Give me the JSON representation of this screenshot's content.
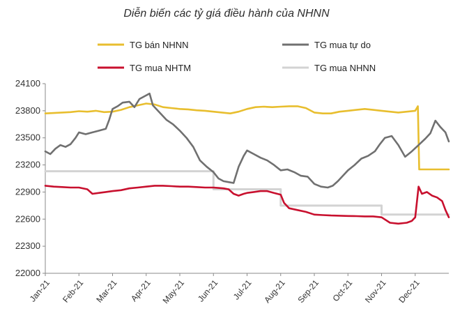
{
  "chart_data": {
    "type": "line",
    "title": "Diễn biến các tỷ giá điều hành của NHNN",
    "xlabel": "",
    "ylabel": "",
    "ylim": [
      22000,
      24100
    ],
    "yticks": [
      "24100",
      "23800",
      "23500",
      "23200",
      "22900",
      "22600",
      "22300",
      "22000"
    ],
    "yticks_values": [
      24100,
      23800,
      23500,
      23200,
      22900,
      22600,
      22300,
      22000
    ],
    "xticks": [
      "Jan-21",
      "Feb-21",
      "Mar-21",
      "Apr-21",
      "May-21",
      "Jun-21",
      "Jul-21",
      "Aug-21",
      "Sep-21",
      "Oct-21",
      "Nov-21",
      "Dec-21"
    ],
    "x_range": [
      0,
      12
    ],
    "grid": false,
    "legend_position": "top",
    "series": [
      {
        "name": "TG bán NHNN",
        "color": "#E8BE2E",
        "x": [
          0,
          0.25,
          0.5,
          0.75,
          1,
          1.25,
          1.5,
          1.75,
          2,
          2.25,
          2.5,
          2.75,
          3,
          3.25,
          3.5,
          3.75,
          4,
          4.25,
          4.5,
          4.75,
          5,
          5.25,
          5.5,
          5.75,
          6,
          6.25,
          6.5,
          6.75,
          7,
          7.25,
          7.5,
          7.75,
          8,
          8.25,
          8.5,
          8.75,
          9,
          9.25,
          9.5,
          9.75,
          10,
          10.25,
          10.5,
          10.75,
          11,
          11.08,
          11.12,
          11.5,
          12
        ],
        "values": [
          23770,
          23775,
          23780,
          23785,
          23795,
          23790,
          23800,
          23785,
          23790,
          23810,
          23840,
          23860,
          23880,
          23870,
          23840,
          23830,
          23820,
          23815,
          23805,
          23800,
          23790,
          23780,
          23770,
          23790,
          23820,
          23840,
          23845,
          23840,
          23845,
          23850,
          23850,
          23830,
          23780,
          23770,
          23770,
          23790,
          23800,
          23810,
          23820,
          23810,
          23800,
          23790,
          23780,
          23790,
          23800,
          23850,
          23150,
          23150,
          23150
        ]
      },
      {
        "name": "TG mua tự do",
        "color": "#707070",
        "x": [
          0,
          0.15,
          0.3,
          0.45,
          0.6,
          0.75,
          0.9,
          1,
          1.2,
          1.4,
          1.6,
          1.8,
          1.9,
          2,
          2.15,
          2.3,
          2.5,
          2.65,
          2.8,
          2.95,
          3.1,
          3.2,
          3.4,
          3.6,
          3.8,
          4,
          4.2,
          4.4,
          4.6,
          4.8,
          5,
          5.15,
          5.3,
          5.45,
          5.6,
          5.75,
          5.9,
          6,
          6.2,
          6.4,
          6.6,
          6.8,
          7,
          7.2,
          7.4,
          7.6,
          7.8,
          8,
          8.2,
          8.4,
          8.55,
          8.7,
          8.85,
          9,
          9.2,
          9.4,
          9.6,
          9.8,
          9.95,
          10.1,
          10.3,
          10.5,
          10.7,
          10.9,
          11.1,
          11.3,
          11.45,
          11.6,
          11.75,
          11.9,
          12
        ],
        "values": [
          23350,
          23320,
          23380,
          23420,
          23400,
          23430,
          23500,
          23560,
          23540,
          23560,
          23580,
          23600,
          23700,
          23820,
          23850,
          23890,
          23900,
          23840,
          23930,
          23960,
          23990,
          23860,
          23780,
          23700,
          23650,
          23580,
          23500,
          23400,
          23250,
          23180,
          23120,
          23050,
          23020,
          23010,
          23000,
          23180,
          23300,
          23360,
          23320,
          23280,
          23250,
          23200,
          23140,
          23150,
          23120,
          23080,
          23070,
          22990,
          22960,
          22950,
          22970,
          23020,
          23080,
          23140,
          23200,
          23270,
          23300,
          23350,
          23430,
          23500,
          23520,
          23420,
          23290,
          23350,
          23420,
          23490,
          23550,
          23690,
          23620,
          23560,
          23460
        ]
      },
      {
        "name": "TG mua NHTM",
        "color": "#C8102E",
        "x": [
          0,
          0.25,
          0.5,
          0.75,
          1,
          1.25,
          1.4,
          1.6,
          1.8,
          2,
          2.25,
          2.5,
          2.75,
          3,
          3.25,
          3.5,
          3.75,
          4,
          4.25,
          4.5,
          4.75,
          5,
          5.15,
          5.3,
          5.45,
          5.6,
          5.75,
          5.9,
          6,
          6.2,
          6.4,
          6.6,
          6.8,
          7,
          7.1,
          7.25,
          7.5,
          7.75,
          8,
          8.25,
          8.5,
          8.75,
          9,
          9.25,
          9.5,
          9.75,
          10,
          10.25,
          10.5,
          10.75,
          10.9,
          11,
          11.1,
          11.2,
          11.35,
          11.5,
          11.65,
          11.8,
          11.9,
          12
        ],
        "values": [
          22970,
          22960,
          22955,
          22950,
          22950,
          22930,
          22880,
          22890,
          22900,
          22910,
          22920,
          22940,
          22950,
          22960,
          22970,
          22970,
          22965,
          22960,
          22960,
          22955,
          22950,
          22950,
          22945,
          22940,
          22930,
          22880,
          22860,
          22880,
          22890,
          22900,
          22910,
          22910,
          22890,
          22870,
          22780,
          22720,
          22700,
          22680,
          22650,
          22645,
          22640,
          22638,
          22635,
          22633,
          22630,
          22630,
          22620,
          22560,
          22550,
          22560,
          22580,
          22620,
          22960,
          22880,
          22900,
          22860,
          22840,
          22800,
          22700,
          22620
        ]
      },
      {
        "name": "TG mua NHNN",
        "color": "#D3D3D3",
        "x": [
          0,
          5,
          5,
          7,
          7,
          9.6,
          9.6,
          10,
          10,
          12
        ],
        "values": [
          23130,
          23130,
          22930,
          22930,
          22750,
          22750,
          22750,
          22750,
          22650,
          22650
        ]
      }
    ]
  }
}
